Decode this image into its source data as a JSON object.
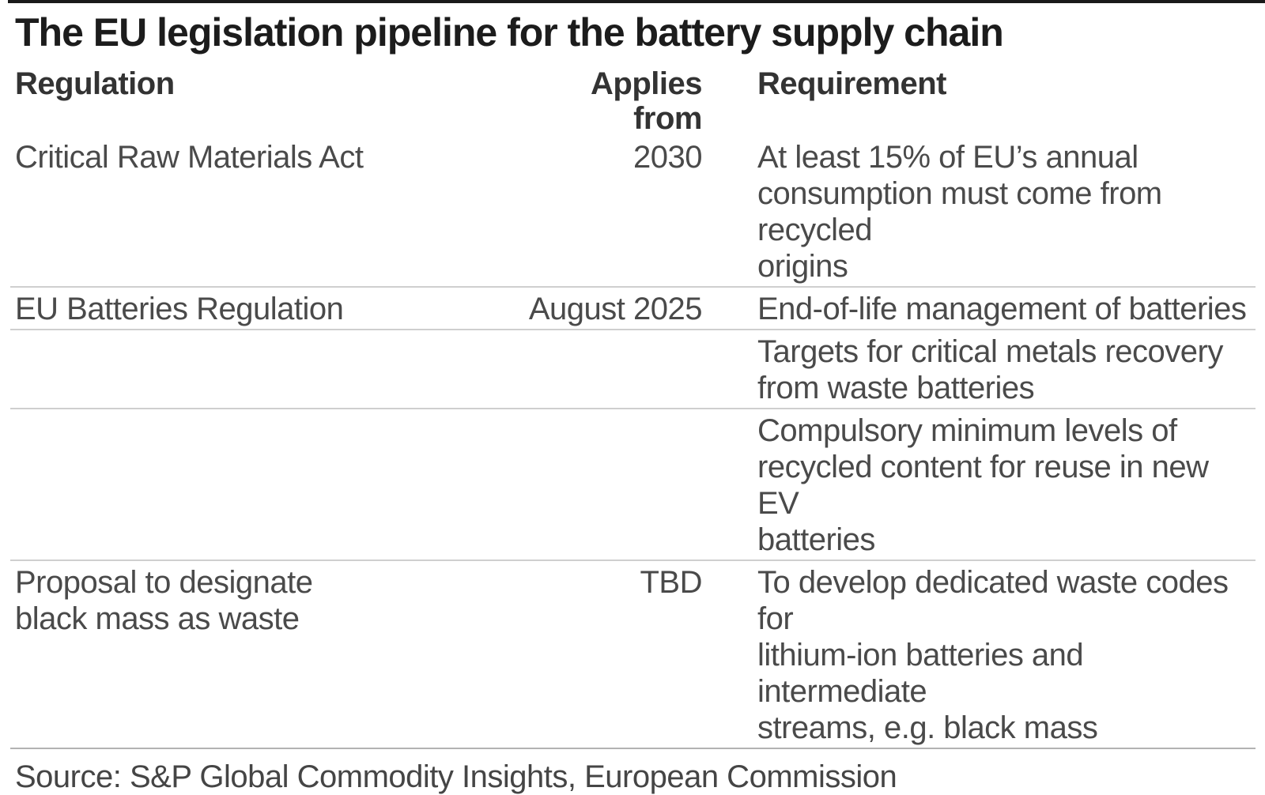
{
  "colors": {
    "background": "#ffffff",
    "accent_bar": "#1a1a1a",
    "title_text": "#1c1c1c",
    "header_text": "#333333",
    "body_text": "#4a4a4a",
    "row_divider": "#cfcfcf",
    "footer_divider": "#b3b3b3"
  },
  "chart_data": {
    "type": "table",
    "title": "The EU legislation pipeline for the battery supply chain",
    "columns": [
      "Regulation",
      "Applies from",
      "Requirement"
    ],
    "rows": [
      {
        "regulation": "Critical Raw Materials Act",
        "applies_from": "2030",
        "requirement": "At least 15% of EU’s annual\nconsumption must come from recycled\norigins"
      },
      {
        "regulation": "EU Batteries Regulation",
        "applies_from": "August 2025",
        "requirement": "End-of-life management of batteries"
      },
      {
        "regulation": "",
        "applies_from": "",
        "requirement": "Targets for critical metals recovery\nfrom waste batteries"
      },
      {
        "regulation": "",
        "applies_from": "",
        "requirement": "Compulsory minimum levels of\nrecycled content for reuse in new EV\nbatteries"
      },
      {
        "regulation": "Proposal to designate\nblack mass as waste",
        "applies_from": "TBD",
        "requirement": "To develop dedicated waste codes for\nlithium-ion batteries and intermediate\nstreams, e.g. black mass"
      }
    ],
    "source": "Source: S&P Global Commodity Insights, European Commission",
    "layout": {
      "grid": "off",
      "header_divider": "none",
      "column_2_alignment": "right"
    }
  }
}
